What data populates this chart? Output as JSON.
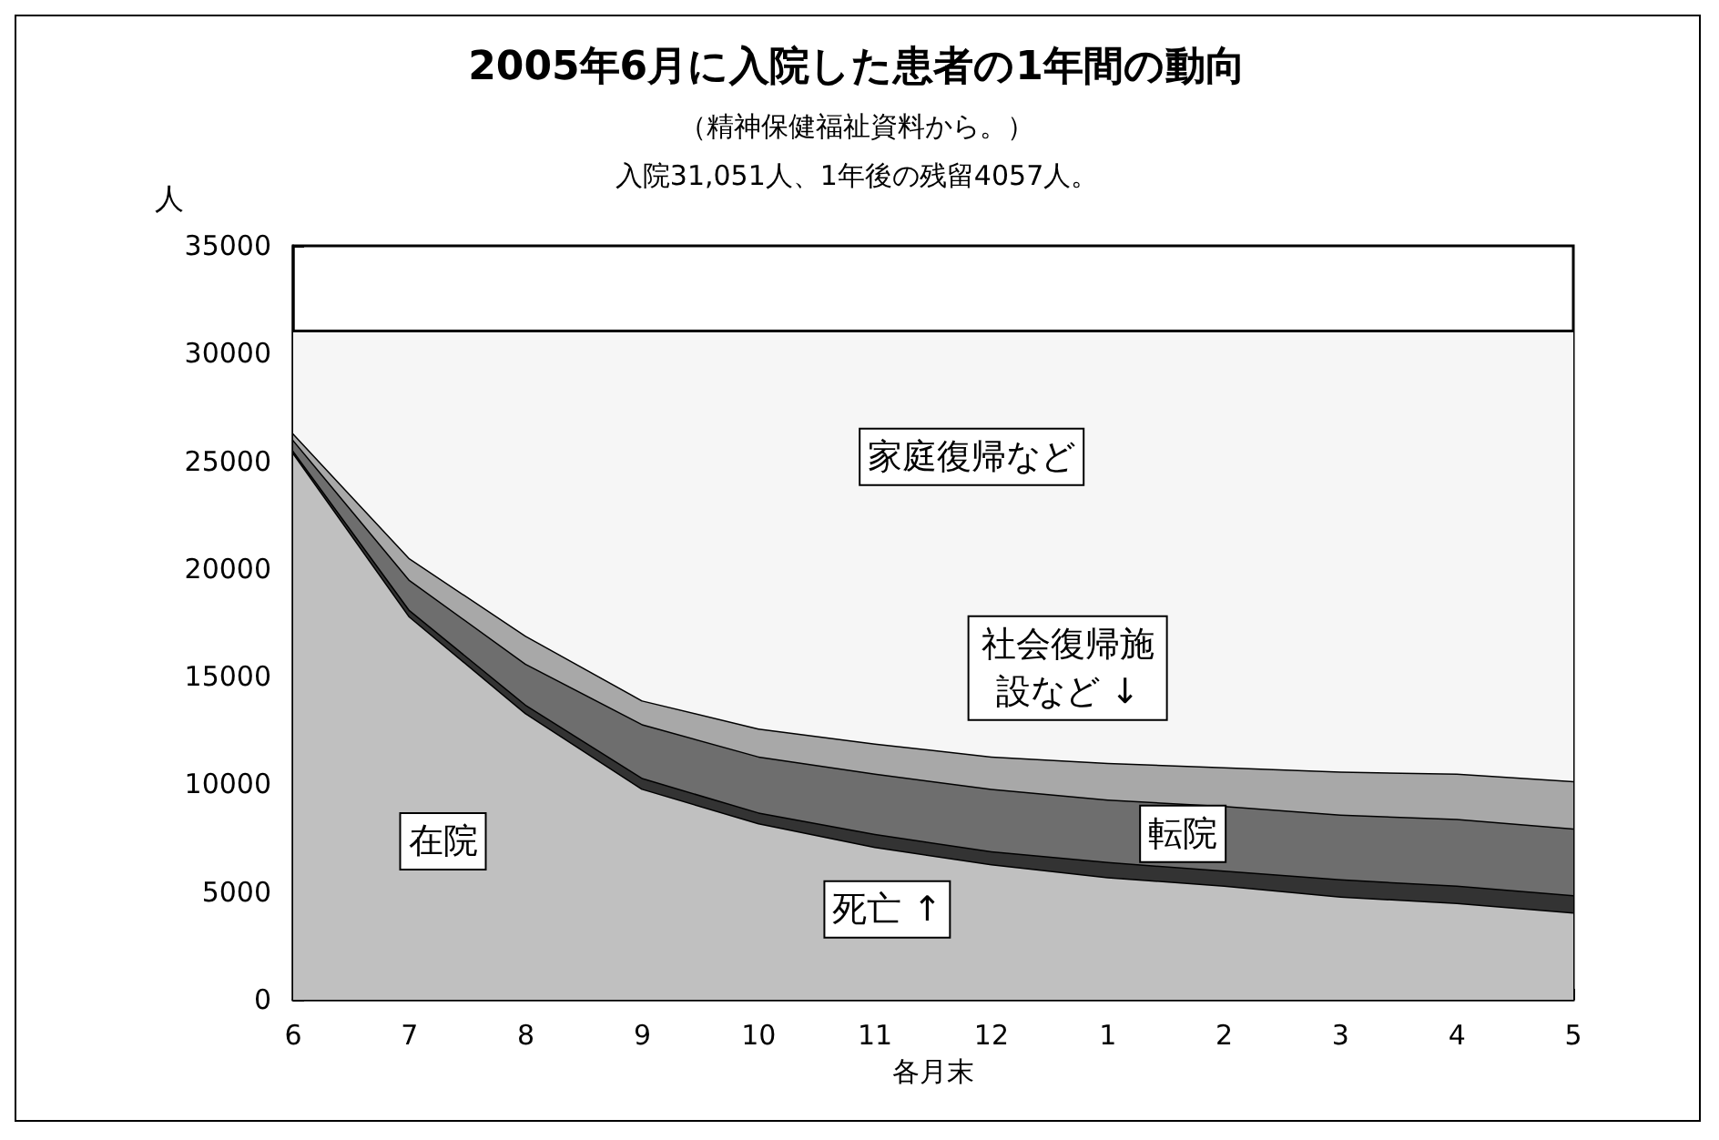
{
  "chart_data": {
    "type": "area",
    "stacked": true,
    "title": "2005年6月に入院した患者の1年間の動向",
    "subtitle": "（精神保健福祉資料から。）",
    "ylabel": "人",
    "xlabel": "各月末",
    "categories": [
      "6",
      "7",
      "8",
      "9",
      "10",
      "11",
      "12",
      "1",
      "2",
      "3",
      "4",
      "5"
    ],
    "series": [
      {
        "color": "#c0c0c0",
        "values": [
          25400,
          17800,
          13300,
          9800,
          8200,
          7100,
          6300,
          5700,
          5300,
          4800,
          4500,
          4057
        ]
      },
      {
        "color": "#333333",
        "values": [
          100,
          300,
          400,
          500,
          500,
          600,
          600,
          700,
          700,
          800,
          800,
          800
        ]
      },
      {
        "color": "#6e6e6e",
        "values": [
          500,
          1400,
          1900,
          2500,
          2600,
          2800,
          2900,
          2900,
          3000,
          3000,
          3100,
          3100
        ]
      },
      {
        "color": "#a8a8a8",
        "values": [
          300,
          1000,
          1300,
          1100,
          1300,
          1400,
          1500,
          1700,
          1800,
          2000,
          2100,
          2200
        ]
      },
      {
        "color": "#f6f6f6",
        "values": [
          4751,
          10551,
          14151,
          17151,
          18451,
          19151,
          19751,
          20051,
          20251,
          20451,
          20551,
          20894
        ]
      }
    ],
    "annotations": [
      "入院31,051人、1年後の残留4057人。",
      "家庭復帰など",
      "社会復帰施設など ↓",
      "転院",
      "在院",
      "死亡 ↑"
    ],
    "ylim": [
      0,
      35000
    ],
    "yticks": [
      0,
      5000,
      10000,
      15000,
      20000,
      25000,
      30000,
      35000
    ],
    "grid": false
  }
}
